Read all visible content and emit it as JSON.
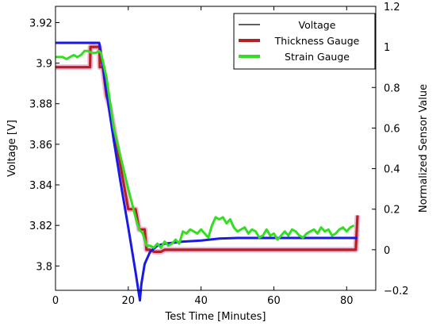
{
  "chart_data": {
    "type": "line",
    "xlabel": "Test Time [Minutes]",
    "ylabel_left": "Voltage [V]",
    "ylabel_right": "Normalized Sensor Value",
    "xlim": [
      0,
      88
    ],
    "ylim_left": [
      3.788,
      3.928
    ],
    "ylim_right": [
      -0.2,
      1.2
    ],
    "xticks": [
      0,
      20,
      40,
      60,
      80
    ],
    "yticks_left": [
      3.8,
      3.82,
      3.84,
      3.86,
      3.88,
      3.9,
      3.92
    ],
    "yticks_right": [
      -0.2,
      0,
      0.2,
      0.4,
      0.6,
      0.8,
      1,
      1.2
    ],
    "ytick_labels_left": [
      "3.8",
      "3.82",
      "3.84",
      "3.86",
      "3.88",
      "3.9",
      "3.92"
    ],
    "ytick_labels_right": [
      "−0.2",
      "0",
      "0.2",
      "0.4",
      "0.6",
      "0.8",
      "1",
      "1.2"
    ],
    "grid": false,
    "legend_position": "top-right",
    "series": [
      {
        "name": "Voltage",
        "axis": "left",
        "color": "#1a1ae6",
        "legend_color": "#000000",
        "x": [
          0,
          12,
          12.5,
          14,
          16,
          18,
          20,
          22,
          23.2,
          23.6,
          24.5,
          26,
          28,
          30,
          35,
          40,
          45,
          50,
          60,
          70,
          80,
          83
        ],
        "y": [
          3.91,
          3.91,
          3.905,
          3.886,
          3.862,
          3.84,
          3.819,
          3.797,
          3.783,
          3.791,
          3.801,
          3.807,
          3.81,
          3.811,
          3.812,
          3.8125,
          3.8135,
          3.8138,
          3.8138,
          3.8138,
          3.8138,
          3.8138
        ]
      },
      {
        "name": "Thickness Gauge",
        "axis": "right",
        "color": "#b22222",
        "x": [
          0,
          9.5,
          9.6,
          12.1,
          12.2,
          13,
          14,
          15,
          16,
          17,
          18,
          19,
          20,
          21,
          22,
          23,
          24,
          24.5,
          25,
          26,
          27,
          28,
          29,
          30,
          40,
          50,
          60,
          70,
          80,
          82.5,
          83
        ],
        "y": [
          0.9,
          0.9,
          1.0,
          1.0,
          0.9,
          0.9,
          0.76,
          0.7,
          0.6,
          0.5,
          0.4,
          0.3,
          0.2,
          0.2,
          0.2,
          0.1,
          0.1,
          0.1,
          0.0,
          0.0,
          -0.01,
          -0.01,
          -0.01,
          0.0,
          0.0,
          0.0,
          0.0,
          0.0,
          0.0,
          0.0,
          0.17
        ]
      },
      {
        "name": "Strain Gauge",
        "axis": "right",
        "color": "#33dd22",
        "x": [
          0,
          2,
          3,
          4,
          5,
          6,
          7,
          8,
          9,
          10,
          11,
          12,
          12.5,
          14,
          16,
          18,
          20,
          22,
          23,
          24,
          25,
          26,
          27,
          28,
          29,
          30,
          31,
          32,
          33,
          34,
          35,
          36,
          37,
          38,
          39,
          40,
          41,
          42,
          43,
          44,
          45,
          46,
          47,
          48,
          49,
          50,
          51,
          52,
          53,
          54,
          55,
          56,
          57,
          58,
          59,
          60,
          61,
          62,
          63,
          64,
          65,
          66,
          67,
          68,
          69,
          70,
          71,
          72,
          73,
          74,
          75,
          76,
          77,
          78,
          79,
          80,
          81,
          82
        ],
        "y": [
          0.95,
          0.95,
          0.94,
          0.95,
          0.96,
          0.95,
          0.96,
          0.98,
          0.98,
          0.97,
          0.97,
          0.98,
          0.97,
          0.85,
          0.6,
          0.45,
          0.3,
          0.16,
          0.1,
          0.08,
          0.02,
          0.02,
          0.01,
          0.03,
          0.01,
          0.04,
          0.02,
          0.03,
          0.05,
          0.03,
          0.09,
          0.08,
          0.1,
          0.09,
          0.08,
          0.1,
          0.08,
          0.06,
          0.12,
          0.16,
          0.15,
          0.16,
          0.13,
          0.15,
          0.11,
          0.09,
          0.1,
          0.11,
          0.08,
          0.1,
          0.09,
          0.06,
          0.07,
          0.1,
          0.07,
          0.08,
          0.05,
          0.07,
          0.09,
          0.07,
          0.1,
          0.09,
          0.07,
          0.06,
          0.08,
          0.09,
          0.1,
          0.08,
          0.11,
          0.09,
          0.1,
          0.07,
          0.08,
          0.1,
          0.11,
          0.09,
          0.11,
          0.12
        ]
      }
    ]
  }
}
